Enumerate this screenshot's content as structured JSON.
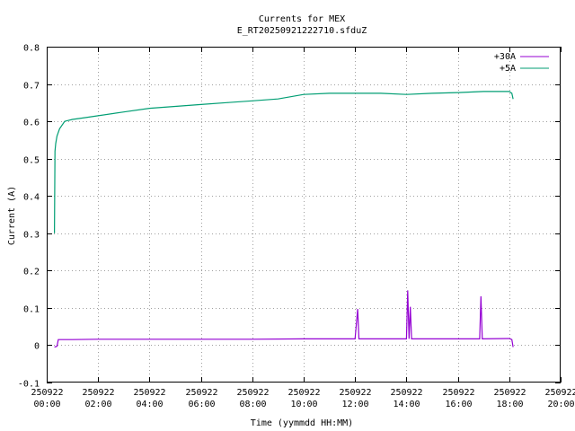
{
  "chart_data": {
    "type": "line",
    "title": "Currents for MEX",
    "subtitle": "E_RT20250921222710.sfduZ",
    "xlabel": "Time (yymmdd HH:MM)",
    "ylabel": "Current (A)",
    "ylim": [
      -0.1,
      0.8
    ],
    "yticks": [
      "-0.1",
      "0",
      "0.1",
      "0.2",
      "0.3",
      "0.4",
      "0.5",
      "0.6",
      "0.7",
      "0.8"
    ],
    "xlim_hours": [
      0,
      20
    ],
    "xticks": [
      {
        "date": "250922",
        "time": "00:00"
      },
      {
        "date": "250922",
        "time": "02:00"
      },
      {
        "date": "250922",
        "time": "04:00"
      },
      {
        "date": "250922",
        "time": "06:00"
      },
      {
        "date": "250922",
        "time": "08:00"
      },
      {
        "date": "250922",
        "time": "10:00"
      },
      {
        "date": "250922",
        "time": "12:00"
      },
      {
        "date": "250922",
        "time": "14:00"
      },
      {
        "date": "250922",
        "time": "16:00"
      },
      {
        "date": "250922",
        "time": "18:00"
      },
      {
        "date": "250922",
        "time": "20:00"
      }
    ],
    "grid": true,
    "legend_position": "top-right",
    "series": [
      {
        "name": "+30A",
        "color": "#9400d3",
        "x": [
          0.3,
          0.4,
          0.45,
          1,
          2,
          4,
          6,
          8,
          10,
          12,
          12.1,
          12.15,
          12.2,
          14,
          14.05,
          14.1,
          14.15,
          14.2,
          14.25,
          14.3,
          16,
          16.85,
          16.9,
          16.95,
          18,
          18.1,
          18.15
        ],
        "y": [
          -0.005,
          -0.003,
          0.015,
          0.015,
          0.016,
          0.016,
          0.016,
          0.016,
          0.017,
          0.017,
          0.097,
          0.017,
          0.017,
          0.017,
          0.147,
          0.017,
          0.103,
          0.017,
          0.017,
          0.017,
          0.017,
          0.017,
          0.131,
          0.017,
          0.018,
          0.015,
          -0.005
        ]
      },
      {
        "name": "+5A",
        "color": "#009e73",
        "x": [
          0.3,
          0.32,
          0.35,
          0.4,
          0.5,
          0.7,
          1,
          1.5,
          2,
          3,
          4,
          5,
          6,
          7,
          8,
          9,
          10,
          11,
          12,
          13,
          14,
          15,
          16,
          17,
          18,
          18.1,
          18.15
        ],
        "y": [
          0.3,
          0.52,
          0.54,
          0.56,
          0.58,
          0.6,
          0.605,
          0.61,
          0.615,
          0.625,
          0.635,
          0.64,
          0.645,
          0.65,
          0.655,
          0.66,
          0.672,
          0.675,
          0.675,
          0.675,
          0.672,
          0.675,
          0.677,
          0.68,
          0.68,
          0.675,
          0.66
        ]
      }
    ]
  }
}
